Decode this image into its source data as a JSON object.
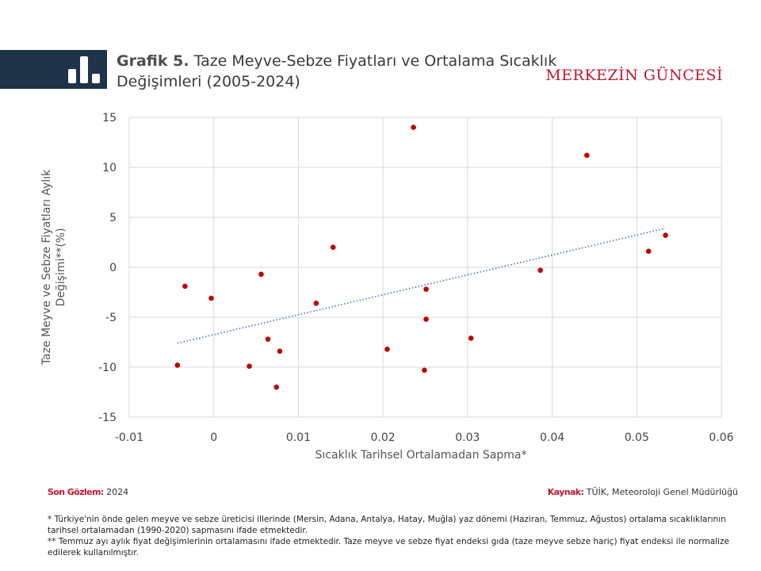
{
  "header": {
    "chart_number": "Grafik 5.",
    "title": "Taze Meyve-Sebze Fiyatları ve Ortalama Sıcaklık Değişimleri (2005-2024)",
    "brand": "MERKEZİN GÜNCESİ"
  },
  "footer": {
    "last_obs_label": "Son Gözlem:",
    "last_obs_value": "2024",
    "source_label": "Kaynak:",
    "source_value": "TÜİK, Meteoroloji Genel Müdürlüğü",
    "note1": "* Türkiye'nin önde gelen meyve ve sebze üreticisi illerinde (Mersin, Adana, Antalya, Hatay, Muğla) yaz dönemi (Haziran, Temmuz, Ağustos) ortalama sıcaklıklarının tarihsel ortalamadan (1990-2020) sapmasını ifade etmektedir.",
    "note2": "** Temmuz ayı aylık fiyat değişimlerinin ortalamasını ifade etmektedir. Taze meyve ve sebze fiyat endeksi gıda (taze meyve sebze hariç) fiyat endeksi ile normalize edilerek kullanılmıştır."
  },
  "colors": {
    "header_band": "#1f3349",
    "brand": "#c0182f",
    "point": "#c00000",
    "trendline": "#4472c4",
    "grid": "#d9d9d9"
  },
  "icons": {
    "header": "bar-chart-icon"
  },
  "chart_data": {
    "type": "scatter",
    "xlabel": "Sıcaklık Tarihsel Ortalamadan Sapma*",
    "ylabel": "Taze Meyve ve Sebze Fiyatları Aylık Değişimi**(%)",
    "xlim": [
      -0.01,
      0.06
    ],
    "ylim": [
      -15,
      15
    ],
    "x_ticks": [
      -0.01,
      0,
      0.01,
      0.02,
      0.03,
      0.04,
      0.05,
      0.06
    ],
    "x_tick_labels": [
      "-0.01",
      "0",
      "0.01",
      "0.02",
      "0.03",
      "0.04",
      "0.05",
      "0.06"
    ],
    "y_ticks": [
      15,
      10,
      5,
      0,
      -5,
      -10,
      -15
    ],
    "y_tick_labels": [
      "15",
      "10",
      "5",
      "0",
      "-5",
      "-10",
      "-15"
    ],
    "grid": true,
    "legend": "none",
    "points": [
      {
        "x": -0.0043,
        "y": -9.8
      },
      {
        "x": -0.0034,
        "y": -1.9
      },
      {
        "x": -0.0003,
        "y": -3.1
      },
      {
        "x": 0.0042,
        "y": -9.9
      },
      {
        "x": 0.0056,
        "y": -0.7
      },
      {
        "x": 0.0064,
        "y": -7.2
      },
      {
        "x": 0.0074,
        "y": -12.0
      },
      {
        "x": 0.0078,
        "y": -8.4
      },
      {
        "x": 0.0121,
        "y": -3.6
      },
      {
        "x": 0.0141,
        "y": 2.0
      },
      {
        "x": 0.0205,
        "y": -8.2
      },
      {
        "x": 0.0236,
        "y": 14.0
      },
      {
        "x": 0.0249,
        "y": -10.3
      },
      {
        "x": 0.0251,
        "y": -2.2
      },
      {
        "x": 0.0251,
        "y": -5.2
      },
      {
        "x": 0.0304,
        "y": -7.1
      },
      {
        "x": 0.0386,
        "y": -0.3
      },
      {
        "x": 0.0441,
        "y": 11.2
      },
      {
        "x": 0.0514,
        "y": 1.6
      },
      {
        "x": 0.0534,
        "y": 3.2
      }
    ],
    "trendline": {
      "style": "dotted",
      "x": [
        -0.0043,
        0.0534
      ],
      "y": [
        -7.6,
        3.9
      ]
    }
  }
}
